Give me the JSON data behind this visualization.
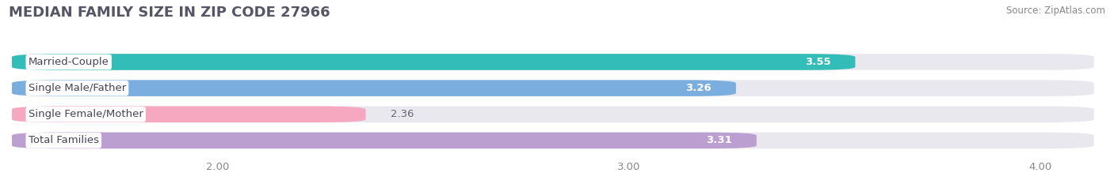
{
  "title": "MEDIAN FAMILY SIZE IN ZIP CODE 27966",
  "source": "Source: ZipAtlas.com",
  "categories": [
    "Married-Couple",
    "Single Male/Father",
    "Single Female/Mother",
    "Total Families"
  ],
  "values": [
    3.55,
    3.26,
    2.36,
    3.31
  ],
  "bar_colors": [
    "#33bdb8",
    "#7aaede",
    "#f5a8c0",
    "#ba9fd0"
  ],
  "track_color": "#e8e8ee",
  "label_bg_color": "#ffffff",
  "xmin": 0.0,
  "xmax": 4.15,
  "xleft": 1.5,
  "xticks": [
    2.0,
    3.0,
    4.0
  ],
  "xtick_labels": [
    "2.00",
    "3.00",
    "4.00"
  ],
  "bar_height": 0.62,
  "title_fontsize": 13,
  "label_fontsize": 9.5,
  "value_fontsize": 9.5,
  "source_fontsize": 8.5,
  "background_color": "#ffffff",
  "title_color": "#555566",
  "source_color": "#888888",
  "tick_color": "#888888"
}
